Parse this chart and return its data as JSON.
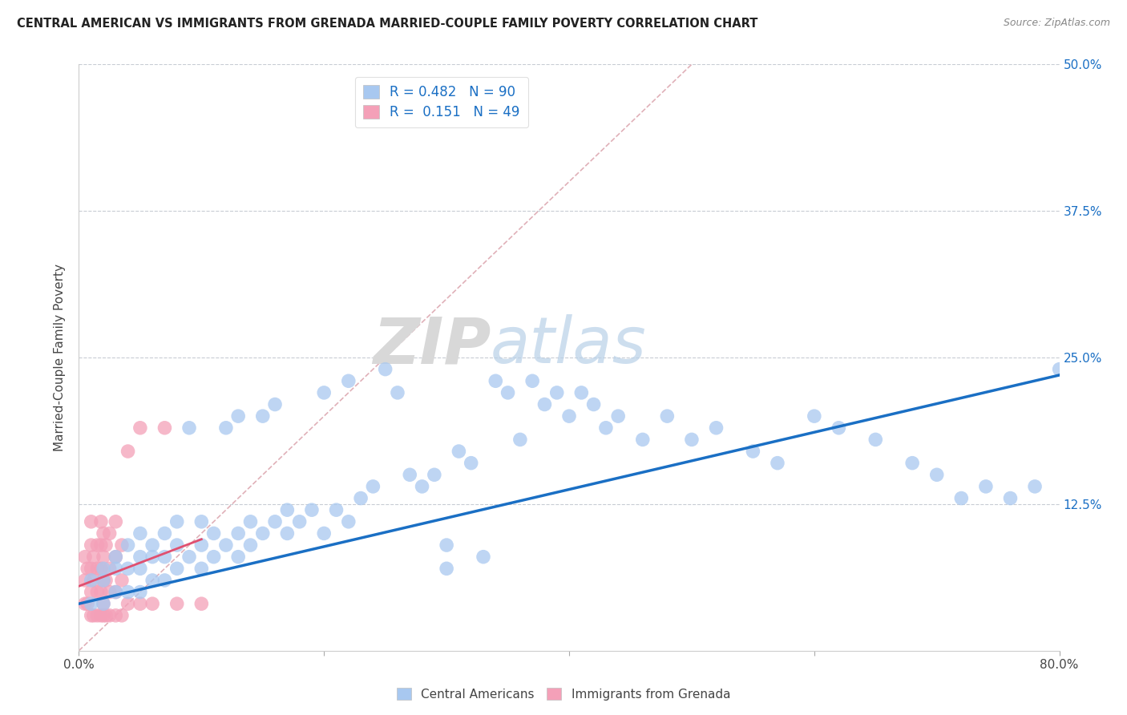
{
  "title": "CENTRAL AMERICAN VS IMMIGRANTS FROM GRENADA MARRIED-COUPLE FAMILY POVERTY CORRELATION CHART",
  "source": "Source: ZipAtlas.com",
  "ylabel": "Married-Couple Family Poverty",
  "xlim": [
    0.0,
    0.8
  ],
  "ylim": [
    0.0,
    0.5
  ],
  "xticks": [
    0.0,
    0.2,
    0.4,
    0.6,
    0.8
  ],
  "xtick_labels": [
    "0.0%",
    "",
    "",
    "",
    "80.0%"
  ],
  "yticks": [
    0.0,
    0.125,
    0.25,
    0.375,
    0.5
  ],
  "ytick_labels": [
    "",
    "12.5%",
    "25.0%",
    "37.5%",
    "50.0%"
  ],
  "R_blue": 0.482,
  "N_blue": 90,
  "R_pink": 0.151,
  "N_pink": 49,
  "blue_color": "#a8c8f0",
  "pink_color": "#f4a0b8",
  "blue_line_color": "#1a6fc4",
  "pink_line_color": "#e05070",
  "diagonal_color": "#e0b0b8",
  "watermark_zip": "ZIP",
  "watermark_atlas": "atlas",
  "legend_label_blue": "Central Americans",
  "legend_label_pink": "Immigrants from Grenada",
  "blue_scatter_x": [
    0.01,
    0.01,
    0.02,
    0.02,
    0.02,
    0.03,
    0.03,
    0.03,
    0.04,
    0.04,
    0.04,
    0.05,
    0.05,
    0.05,
    0.05,
    0.06,
    0.06,
    0.06,
    0.07,
    0.07,
    0.07,
    0.08,
    0.08,
    0.08,
    0.09,
    0.09,
    0.1,
    0.1,
    0.1,
    0.11,
    0.11,
    0.12,
    0.12,
    0.13,
    0.13,
    0.13,
    0.14,
    0.14,
    0.15,
    0.15,
    0.16,
    0.16,
    0.17,
    0.17,
    0.18,
    0.19,
    0.2,
    0.2,
    0.21,
    0.22,
    0.22,
    0.23,
    0.24,
    0.25,
    0.26,
    0.27,
    0.28,
    0.29,
    0.3,
    0.3,
    0.31,
    0.32,
    0.33,
    0.34,
    0.35,
    0.36,
    0.37,
    0.38,
    0.39,
    0.4,
    0.41,
    0.42,
    0.43,
    0.44,
    0.46,
    0.48,
    0.5,
    0.52,
    0.55,
    0.57,
    0.6,
    0.62,
    0.65,
    0.68,
    0.7,
    0.72,
    0.74,
    0.76,
    0.78,
    0.8
  ],
  "blue_scatter_y": [
    0.04,
    0.06,
    0.04,
    0.06,
    0.07,
    0.05,
    0.07,
    0.08,
    0.05,
    0.07,
    0.09,
    0.05,
    0.07,
    0.08,
    0.1,
    0.06,
    0.08,
    0.09,
    0.06,
    0.08,
    0.1,
    0.07,
    0.09,
    0.11,
    0.08,
    0.19,
    0.07,
    0.09,
    0.11,
    0.08,
    0.1,
    0.09,
    0.19,
    0.08,
    0.1,
    0.2,
    0.09,
    0.11,
    0.1,
    0.2,
    0.11,
    0.21,
    0.1,
    0.12,
    0.11,
    0.12,
    0.1,
    0.22,
    0.12,
    0.11,
    0.23,
    0.13,
    0.14,
    0.24,
    0.22,
    0.15,
    0.14,
    0.15,
    0.07,
    0.09,
    0.17,
    0.16,
    0.08,
    0.23,
    0.22,
    0.18,
    0.23,
    0.21,
    0.22,
    0.2,
    0.22,
    0.21,
    0.19,
    0.2,
    0.18,
    0.2,
    0.18,
    0.19,
    0.17,
    0.16,
    0.2,
    0.19,
    0.18,
    0.16,
    0.15,
    0.13,
    0.14,
    0.13,
    0.14,
    0.24
  ],
  "pink_scatter_x": [
    0.005,
    0.005,
    0.005,
    0.007,
    0.007,
    0.01,
    0.01,
    0.01,
    0.01,
    0.01,
    0.012,
    0.012,
    0.012,
    0.015,
    0.015,
    0.015,
    0.015,
    0.018,
    0.018,
    0.018,
    0.018,
    0.018,
    0.02,
    0.02,
    0.02,
    0.02,
    0.02,
    0.022,
    0.022,
    0.022,
    0.025,
    0.025,
    0.025,
    0.025,
    0.03,
    0.03,
    0.03,
    0.03,
    0.035,
    0.035,
    0.035,
    0.04,
    0.04,
    0.05,
    0.05,
    0.06,
    0.07,
    0.08,
    0.1
  ],
  "pink_scatter_y": [
    0.04,
    0.06,
    0.08,
    0.04,
    0.07,
    0.03,
    0.05,
    0.07,
    0.09,
    0.11,
    0.03,
    0.06,
    0.08,
    0.03,
    0.05,
    0.07,
    0.09,
    0.03,
    0.05,
    0.07,
    0.09,
    0.11,
    0.03,
    0.04,
    0.06,
    0.08,
    0.1,
    0.03,
    0.06,
    0.09,
    0.03,
    0.05,
    0.07,
    0.1,
    0.03,
    0.05,
    0.08,
    0.11,
    0.03,
    0.06,
    0.09,
    0.04,
    0.17,
    0.04,
    0.19,
    0.04,
    0.19,
    0.04,
    0.04
  ],
  "blue_line_x0": 0.0,
  "blue_line_y0": 0.04,
  "blue_line_x1": 0.8,
  "blue_line_y1": 0.235,
  "pink_line_x0": 0.0,
  "pink_line_y0": 0.055,
  "pink_line_x1": 0.1,
  "pink_line_y1": 0.095
}
